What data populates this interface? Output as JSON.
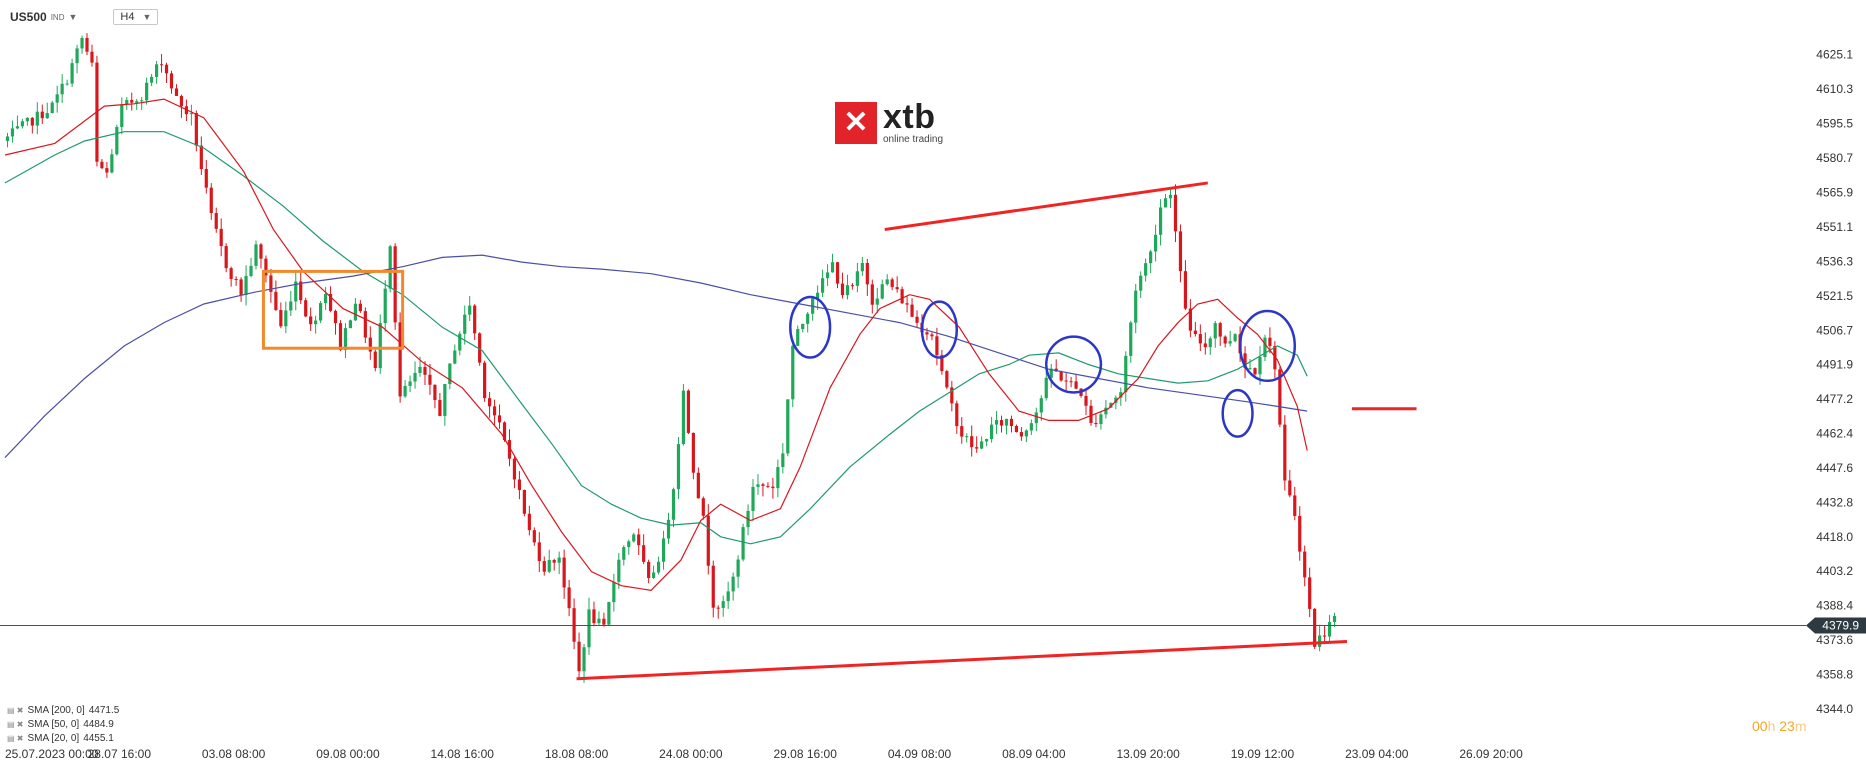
{
  "toolbar": {
    "symbol": "US500",
    "symbol_tag": "IND",
    "timeframe": "H4"
  },
  "logo": {
    "mark": "✕",
    "name": "xtb",
    "tagline": "online trading"
  },
  "legend": [
    {
      "label": "SMA [200,  0]",
      "value": "4471.5"
    },
    {
      "label": "SMA [50,  0]",
      "value": "4484.9"
    },
    {
      "label": "SMA [20,  0]",
      "value": "4455.1"
    }
  ],
  "timer": {
    "h": "00",
    "h_unit": "h",
    "m": "23",
    "m_unit": "m"
  },
  "chart_data": {
    "type": "candlestick",
    "instrument": "US500",
    "timeframe": "H4",
    "y_ticks": [
      4625.1,
      4610.3,
      4595.5,
      4580.7,
      4565.9,
      4551.1,
      4536.3,
      4521.5,
      4506.7,
      4491.9,
      4477.2,
      4462.4,
      4447.6,
      4432.8,
      4418.0,
      4403.2,
      4388.4,
      4373.6,
      4358.8,
      4344.0
    ],
    "ylim": [
      4338,
      4640
    ],
    "x_ticks": [
      {
        "i": 0,
        "label": "25.07.2023   00:00"
      },
      {
        "i": 23,
        "label": "28.07  16:00"
      },
      {
        "i": 46,
        "label": "03.08  08:00"
      },
      {
        "i": 69,
        "label": "09.08  00:00"
      },
      {
        "i": 92,
        "label": "14.08  16:00"
      },
      {
        "i": 115,
        "label": "18.08  08:00"
      },
      {
        "i": 138,
        "label": "24.08  00:00"
      },
      {
        "i": 161,
        "label": "29.08  16:00"
      },
      {
        "i": 184,
        "label": "04.09  08:00"
      },
      {
        "i": 207,
        "label": "08.09  04:00"
      },
      {
        "i": 230,
        "label": "13.09  20:00"
      },
      {
        "i": 253,
        "label": "19.09  12:00"
      },
      {
        "i": 276,
        "label": "23.09  04:00"
      },
      {
        "i": 299,
        "label": "26.09  20:00"
      }
    ],
    "x_range": [
      0,
      302
    ],
    "current_price": 4379.9,
    "last_candle_index": 267,
    "close_path": [
      [
        0,
        4588
      ],
      [
        6,
        4597
      ],
      [
        10,
        4603
      ],
      [
        13,
        4615
      ],
      [
        16,
        4632
      ],
      [
        18,
        4620
      ],
      [
        19,
        4578
      ],
      [
        21,
        4574
      ],
      [
        24,
        4602
      ],
      [
        28,
        4608
      ],
      [
        32,
        4623
      ],
      [
        35,
        4606
      ],
      [
        38,
        4598
      ],
      [
        42,
        4555
      ],
      [
        45,
        4535
      ],
      [
        48,
        4523
      ],
      [
        51,
        4542
      ],
      [
        53,
        4531
      ],
      [
        56,
        4508
      ],
      [
        59,
        4528
      ],
      [
        62,
        4508
      ],
      [
        65,
        4524
      ],
      [
        68,
        4500
      ],
      [
        71,
        4520
      ],
      [
        75,
        4490
      ],
      [
        78,
        4545
      ],
      [
        80,
        4478
      ],
      [
        84,
        4490
      ],
      [
        88,
        4472
      ],
      [
        91,
        4500
      ],
      [
        94,
        4518
      ],
      [
        97,
        4480
      ],
      [
        100,
        4465
      ],
      [
        103,
        4445
      ],
      [
        106,
        4420
      ],
      [
        109,
        4405
      ],
      [
        112,
        4410
      ],
      [
        114,
        4385
      ],
      [
        116,
        4360
      ],
      [
        118,
        4385
      ],
      [
        121,
        4378
      ],
      [
        124,
        4410
      ],
      [
        127,
        4420
      ],
      [
        130,
        4398
      ],
      [
        133,
        4415
      ],
      [
        135,
        4440
      ],
      [
        137,
        4480
      ],
      [
        139,
        4448
      ],
      [
        141,
        4425
      ],
      [
        143,
        4390
      ],
      [
        145,
        4388
      ],
      [
        147,
        4400
      ],
      [
        149,
        4420
      ],
      [
        151,
        4440
      ],
      [
        153,
        4440
      ],
      [
        155,
        4440
      ],
      [
        157,
        4455
      ],
      [
        159,
        4500
      ],
      [
        161,
        4510
      ],
      [
        163,
        4522
      ],
      [
        165,
        4527
      ],
      [
        167,
        4535
      ],
      [
        169,
        4523
      ],
      [
        171,
        4525
      ],
      [
        173,
        4535
      ],
      [
        175,
        4520
      ],
      [
        178,
        4528
      ],
      [
        181,
        4520
      ],
      [
        184,
        4510
      ],
      [
        187,
        4505
      ],
      [
        190,
        4480
      ],
      [
        193,
        4462
      ],
      [
        196,
        4455
      ],
      [
        199,
        4465
      ],
      [
        202,
        4468
      ],
      [
        205,
        4462
      ],
      [
        208,
        4472
      ],
      [
        211,
        4490
      ],
      [
        214,
        4485
      ],
      [
        217,
        4480
      ],
      [
        219,
        4466
      ],
      [
        222,
        4474
      ],
      [
        225,
        4480
      ],
      [
        228,
        4525
      ],
      [
        231,
        4540
      ],
      [
        233,
        4560
      ],
      [
        235,
        4567
      ],
      [
        237,
        4530
      ],
      [
        239,
        4505
      ],
      [
        242,
        4500
      ],
      [
        244,
        4510
      ],
      [
        246,
        4500
      ],
      [
        248,
        4506
      ],
      [
        250,
        4491
      ],
      [
        252,
        4490
      ],
      [
        254,
        4505
      ],
      [
        256,
        4492
      ],
      [
        258,
        4440
      ],
      [
        260,
        4428
      ],
      [
        262,
        4400
      ],
      [
        264,
        4372
      ],
      [
        266,
        4377
      ],
      [
        267,
        4383
      ]
    ],
    "sma_20": [
      [
        0,
        4582
      ],
      [
        10,
        4587
      ],
      [
        20,
        4603
      ],
      [
        26,
        4604
      ],
      [
        32,
        4606
      ],
      [
        40,
        4598
      ],
      [
        48,
        4575
      ],
      [
        54,
        4550
      ],
      [
        60,
        4532
      ],
      [
        68,
        4516
      ],
      [
        76,
        4508
      ],
      [
        84,
        4493
      ],
      [
        92,
        4482
      ],
      [
        100,
        4462
      ],
      [
        106,
        4440
      ],
      [
        112,
        4420
      ],
      [
        118,
        4403
      ],
      [
        124,
        4397
      ],
      [
        130,
        4395
      ],
      [
        136,
        4408
      ],
      [
        140,
        4425
      ],
      [
        144,
        4432
      ],
      [
        150,
        4425
      ],
      [
        156,
        4430
      ],
      [
        160,
        4448
      ],
      [
        166,
        4482
      ],
      [
        172,
        4505
      ],
      [
        176,
        4516
      ],
      [
        182,
        4522
      ],
      [
        186,
        4520
      ],
      [
        192,
        4508
      ],
      [
        198,
        4488
      ],
      [
        204,
        4472
      ],
      [
        210,
        4468
      ],
      [
        216,
        4468
      ],
      [
        222,
        4473
      ],
      [
        228,
        4486
      ],
      [
        232,
        4500
      ],
      [
        236,
        4510
      ],
      [
        240,
        4518
      ],
      [
        244,
        4520
      ],
      [
        248,
        4512
      ],
      [
        252,
        4505
      ],
      [
        256,
        4494
      ],
      [
        260,
        4474
      ],
      [
        262,
        4455
      ]
    ],
    "sma_50": [
      [
        0,
        4570
      ],
      [
        10,
        4582
      ],
      [
        16,
        4588
      ],
      [
        24,
        4592
      ],
      [
        32,
        4592
      ],
      [
        40,
        4585
      ],
      [
        48,
        4573
      ],
      [
        56,
        4560
      ],
      [
        64,
        4545
      ],
      [
        72,
        4532
      ],
      [
        80,
        4522
      ],
      [
        88,
        4508
      ],
      [
        96,
        4498
      ],
      [
        104,
        4475
      ],
      [
        110,
        4458
      ],
      [
        116,
        4440
      ],
      [
        122,
        4432
      ],
      [
        128,
        4426
      ],
      [
        134,
        4423
      ],
      [
        140,
        4424
      ],
      [
        144,
        4418
      ],
      [
        150,
        4415
      ],
      [
        156,
        4418
      ],
      [
        162,
        4430
      ],
      [
        170,
        4448
      ],
      [
        178,
        4462
      ],
      [
        184,
        4472
      ],
      [
        190,
        4480
      ],
      [
        196,
        4488
      ],
      [
        202,
        4492
      ],
      [
        206,
        4496
      ],
      [
        212,
        4497
      ],
      [
        218,
        4492
      ],
      [
        224,
        4488
      ],
      [
        230,
        4486
      ],
      [
        236,
        4484
      ],
      [
        242,
        4485
      ],
      [
        248,
        4490
      ],
      [
        252,
        4495
      ],
      [
        256,
        4500
      ],
      [
        260,
        4496
      ],
      [
        262,
        4487
      ]
    ],
    "sma_200": [
      [
        0,
        4452
      ],
      [
        8,
        4470
      ],
      [
        16,
        4486
      ],
      [
        24,
        4500
      ],
      [
        32,
        4510
      ],
      [
        40,
        4518
      ],
      [
        50,
        4523
      ],
      [
        60,
        4527
      ],
      [
        70,
        4530
      ],
      [
        80,
        4534
      ],
      [
        88,
        4538
      ],
      [
        96,
        4539
      ],
      [
        104,
        4536
      ],
      [
        112,
        4534
      ],
      [
        120,
        4533
      ],
      [
        130,
        4531
      ],
      [
        140,
        4527
      ],
      [
        150,
        4522
      ],
      [
        160,
        4518
      ],
      [
        170,
        4514
      ],
      [
        180,
        4510
      ],
      [
        190,
        4504
      ],
      [
        200,
        4497
      ],
      [
        210,
        4490
      ],
      [
        220,
        4486
      ],
      [
        230,
        4482
      ],
      [
        240,
        4479
      ],
      [
        250,
        4476
      ],
      [
        256,
        4474
      ],
      [
        262,
        4472
      ]
    ],
    "annotations": {
      "support_line": [
        [
          115,
          4357
        ],
        [
          270,
          4373
        ]
      ],
      "resistance_line": [
        [
          177,
          4550
        ],
        [
          242,
          4570
        ]
      ],
      "level_line": {
        "from": 271,
        "to": 284,
        "price": 4473
      },
      "box": {
        "from": 52,
        "to": 80,
        "top": 4532,
        "bottom": 4499
      },
      "ellipses": [
        {
          "i": 162,
          "price": 4508,
          "ri": 4,
          "rp": 13
        },
        {
          "i": 188,
          "price": 4507,
          "ri": 3.5,
          "rp": 12
        },
        {
          "i": 215,
          "price": 4492,
          "ri": 5.5,
          "rp": 12
        },
        {
          "i": 248,
          "price": 4471,
          "ri": 3,
          "rp": 10
        },
        {
          "i": 254,
          "price": 4500,
          "ri": 5.5,
          "rp": 15
        }
      ]
    },
    "colors": {
      "up": "#1fa85a",
      "down": "#d8171d",
      "sma_20": "#d8171d",
      "sma_50": "#1f9a6c",
      "sma_200": "#4b4fa6",
      "annotation_red": "#f12424",
      "annotation_blue": "#2c37c8",
      "box": "#f08a2c",
      "price_tag": "#2d3a40"
    }
  }
}
